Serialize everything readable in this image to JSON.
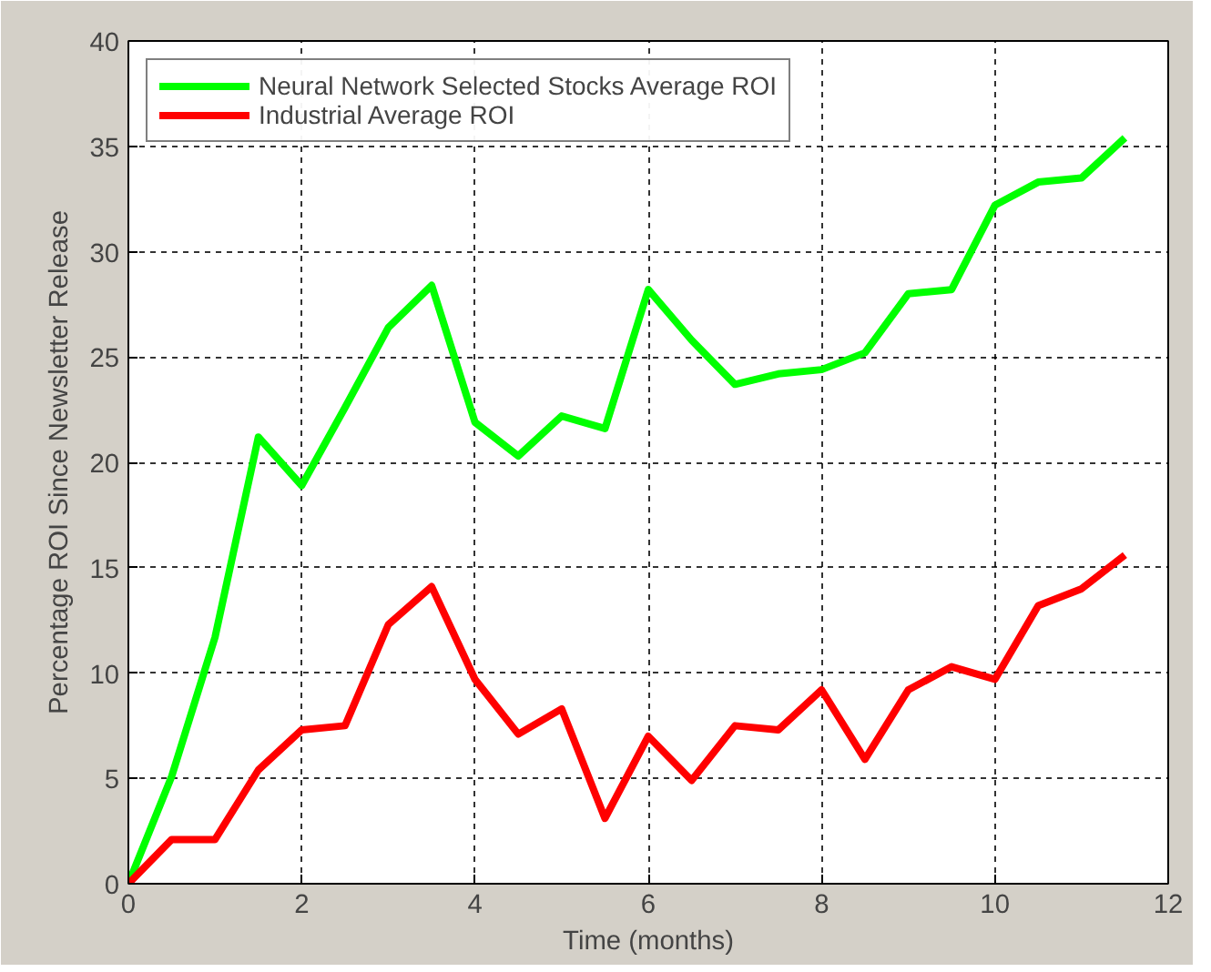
{
  "chart_data": {
    "type": "line",
    "xlabel": "Time (months)",
    "ylabel": "Percentage ROI Since Newsletter Release",
    "x": [
      0,
      0.5,
      1,
      1.5,
      2,
      2.5,
      3,
      3.5,
      4,
      4.5,
      5,
      5.5,
      6,
      6.5,
      7,
      7.5,
      8,
      8.5,
      9,
      9.5,
      10,
      10.5,
      11,
      11.5
    ],
    "series": [
      {
        "name": "Neural Network Selected Stocks Average ROI",
        "color": "#00ff00",
        "values": [
          0,
          5.1,
          11.7,
          21.2,
          18.9,
          22.6,
          26.4,
          28.4,
          21.9,
          20.3,
          22.2,
          21.6,
          28.2,
          25.8,
          23.7,
          24.2,
          24.4,
          25.2,
          28.0,
          28.2,
          32.2,
          33.3,
          33.5,
          35.4
        ]
      },
      {
        "name": "Industrial Average ROI",
        "color": "#ff0000",
        "values": [
          0,
          2.1,
          2.1,
          5.4,
          7.3,
          7.5,
          12.3,
          14.1,
          9.7,
          7.1,
          8.3,
          3.1,
          7.0,
          4.9,
          7.5,
          7.3,
          9.2,
          5.9,
          9.2,
          10.3,
          9.7,
          13.2,
          14.0,
          15.6
        ]
      }
    ],
    "xlim": [
      0,
      12
    ],
    "xticks": [
      0,
      2,
      4,
      6,
      8,
      10,
      12
    ],
    "ylim": [
      0,
      40
    ],
    "yticks": [
      0,
      5,
      10,
      15,
      20,
      25,
      30,
      35,
      40
    ],
    "grid": true,
    "legend": "top left",
    "line_style": "solid"
  }
}
